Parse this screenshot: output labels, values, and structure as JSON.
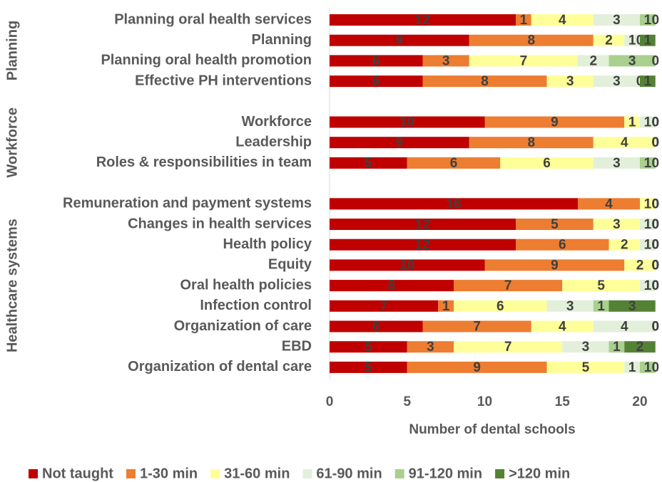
{
  "chart_data": {
    "type": "bar",
    "orientation": "horizontal",
    "stacked": true,
    "x_label": "Number of dental schools",
    "groups": [
      {
        "name": "Planning",
        "categories": [
          "Planning oral health services",
          "Planning",
          "Planning oral health promotion",
          "Effective PH interventions"
        ]
      },
      {
        "name": "Workforce",
        "categories": [
          "Workforce",
          "Leadership",
          "Roles & responsibilities in team"
        ]
      },
      {
        "name": "Healthcare systems",
        "categories": [
          "Remuneration and payment systems",
          "Changes in health services",
          "Health policy",
          "Equity",
          "Oral health policies",
          "Infection control",
          "Organization of care",
          "EBD",
          "Organization of dental care"
        ]
      }
    ],
    "series": [
      {
        "name": "Not taught",
        "color": "#c00000",
        "values": [
          12,
          9,
          6,
          6,
          10,
          9,
          5,
          16,
          12,
          12,
          10,
          8,
          7,
          6,
          5,
          5
        ]
      },
      {
        "name": "1-30 min",
        "color": "#ed7d31",
        "values": [
          1,
          8,
          3,
          8,
          9,
          8,
          6,
          4,
          5,
          6,
          9,
          7,
          1,
          7,
          3,
          9
        ]
      },
      {
        "name": "31-60 min",
        "color": "#ffff99",
        "values": [
          4,
          2,
          7,
          3,
          1,
          4,
          6,
          1,
          3,
          2,
          2,
          5,
          6,
          4,
          7,
          5
        ]
      },
      {
        "name": "61-90 min",
        "color": "#e2efda",
        "values": [
          3,
          1,
          2,
          3,
          1,
          0,
          3,
          0,
          1,
          1,
          0,
          1,
          3,
          4,
          3,
          1
        ]
      },
      {
        "name": "91-120 min",
        "color": "#a9d08e",
        "values": [
          1,
          0,
          3,
          0,
          0,
          0,
          1,
          0,
          0,
          0,
          0,
          0,
          1,
          0,
          1,
          1
        ]
      },
      {
        "name": ">120 min",
        "color": "#548235",
        "values": [
          0,
          1,
          0,
          1,
          0,
          0,
          0,
          0,
          0,
          0,
          0,
          0,
          3,
          0,
          2,
          0
        ]
      }
    ],
    "xlim": [
      0,
      21
    ],
    "xticks": [
      0,
      5,
      10,
      15,
      20
    ],
    "legend": "bottom"
  }
}
